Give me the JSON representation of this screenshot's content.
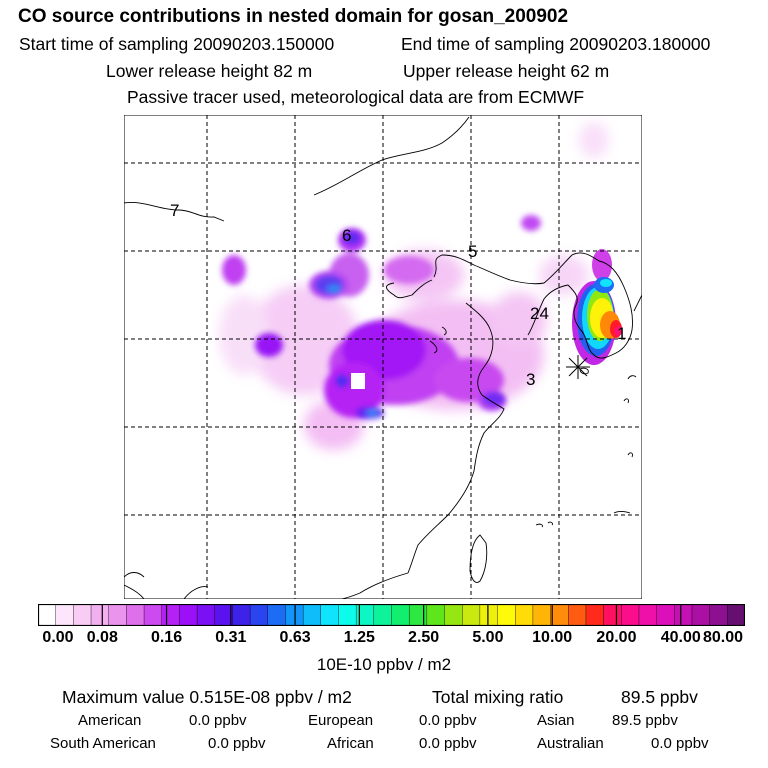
{
  "header": {
    "title": "CO  source contributions in nested domain for gosan_200902",
    "start_label": "Start time of sampling 20090203.150000",
    "end_label": "End time of sampling 20090203.180000",
    "lower_label": "Lower release height   82 m",
    "upper_label": "Upper release height   62 m",
    "tracer_label": "Passive tracer used, meteorological data are from ECMWF"
  },
  "map": {
    "markers": [
      "1",
      "24",
      "3",
      "5",
      "6",
      "7"
    ],
    "receptor_symbol": "asterisk-icon"
  },
  "colorbar": {
    "colors": [
      "#ffffff",
      "#fde6fb",
      "#f9ccf6",
      "#f3b0f0",
      "#eb94ed",
      "#de70ec",
      "#cd49f0",
      "#b520f5",
      "#9b10f7",
      "#7a10f3",
      "#5a13ee",
      "#3f22ea",
      "#2a45ef",
      "#1c6cf4",
      "#1294f8",
      "#0fbdfb",
      "#10e4fc",
      "#0dfbeb",
      "#0cf7c4",
      "#0ef39a",
      "#12ee6e",
      "#2ce840",
      "#5ee51c",
      "#96e611",
      "#c8ea0e",
      "#eef00c",
      "#fffa0a",
      "#ffdc07",
      "#ffb408",
      "#ff8c0a",
      "#ff5c12",
      "#ff2a1c",
      "#ff1060",
      "#fa0e8c",
      "#ee10a8",
      "#dc10b8",
      "#c510b4",
      "#aa10a4",
      "#8c1090",
      "#660f70"
    ],
    "tick_labels": [
      "0.00",
      "0.08",
      "0.16",
      "0.31",
      "0.63",
      "1.25",
      "2.50",
      "5.00",
      "10.00",
      "20.00",
      "40.00",
      "80.00"
    ],
    "units": "10E-10 ppbv / m2"
  },
  "stats": {
    "maximum_label": "Maximum value  0.515E-08 ppbv / m2",
    "total_label": "Total mixing ratio",
    "total_value": "89.5 ppbv",
    "regions": [
      {
        "name": "American",
        "value": "0.0 ppbv"
      },
      {
        "name": "European",
        "value": "0.0 ppbv"
      },
      {
        "name": "Asian",
        "value": "89.5 ppbv"
      },
      {
        "name": "South American",
        "value": "0.0 ppbv"
      },
      {
        "name": "African",
        "value": "0.0 ppbv"
      },
      {
        "name": "Australian",
        "value": "0.0 ppbv"
      }
    ]
  }
}
